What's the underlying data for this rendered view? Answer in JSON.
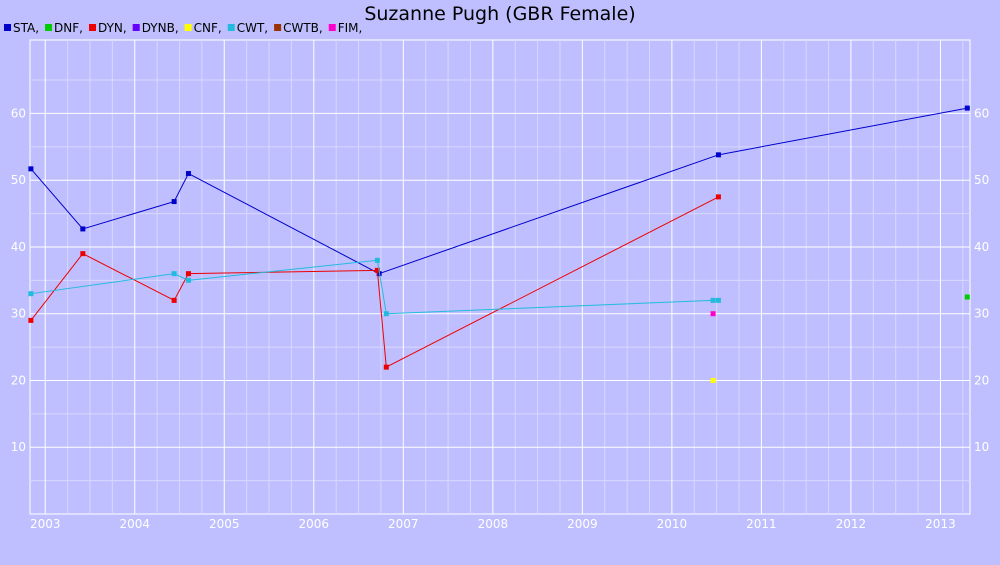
{
  "chart_data": {
    "type": "line",
    "title": "Suzanne Pugh (GBR Female)",
    "xlabel": "",
    "ylabel": "",
    "legend_position": "top-left",
    "grid": true,
    "xlim": [
      2002.83,
      2013.33
    ],
    "ylim": [
      0,
      71
    ],
    "x_ticks": [
      2003,
      2004,
      2005,
      2006,
      2007,
      2008,
      2009,
      2010,
      2011,
      2012,
      2013
    ],
    "y_ticks": [
      10,
      20,
      30,
      40,
      50,
      60
    ],
    "series": [
      {
        "name": "STA",
        "color": "#0000cc",
        "points": [
          [
            2002.84,
            51.7
          ],
          [
            2003.42,
            42.7
          ],
          [
            2004.44,
            46.8
          ],
          [
            2004.6,
            51.0
          ],
          [
            2006.73,
            36.0
          ],
          [
            2010.52,
            53.8
          ],
          [
            2013.3,
            60.8
          ]
        ]
      },
      {
        "name": "DNF",
        "color": "#00cc00",
        "points": [
          [
            2013.3,
            32.5
          ]
        ]
      },
      {
        "name": "DYN",
        "color": "#ee0000",
        "points": [
          [
            2002.84,
            29.0
          ],
          [
            2003.42,
            39.0
          ],
          [
            2004.44,
            32.0
          ],
          [
            2004.6,
            36.0
          ],
          [
            2006.71,
            36.5
          ],
          [
            2006.81,
            22.0
          ],
          [
            2010.52,
            47.5
          ]
        ]
      },
      {
        "name": "DYNB",
        "color": "#6600ff",
        "points": []
      },
      {
        "name": "CNF",
        "color": "#ffff00",
        "points": [
          [
            2010.46,
            20.0
          ]
        ]
      },
      {
        "name": "CWT",
        "color": "#22bbdd",
        "points": [
          [
            2002.84,
            33.0
          ],
          [
            2004.44,
            36.0
          ],
          [
            2004.6,
            35.0
          ],
          [
            2006.71,
            38.0
          ],
          [
            2006.81,
            30.0
          ],
          [
            2010.46,
            32.0
          ],
          [
            2010.52,
            32.0
          ]
        ]
      },
      {
        "name": "CWTB",
        "color": "#993300",
        "points": []
      },
      {
        "name": "FIM",
        "color": "#ff00cc",
        "points": [
          [
            2010.46,
            30.0
          ]
        ]
      }
    ]
  }
}
